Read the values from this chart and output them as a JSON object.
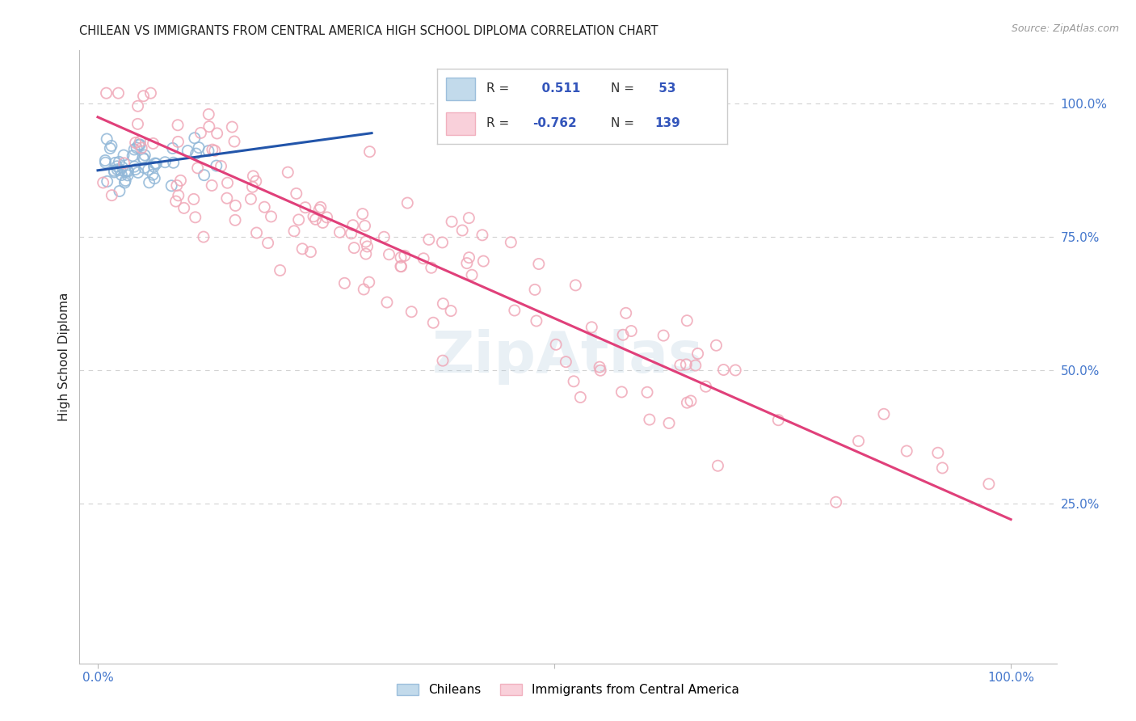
{
  "title": "CHILEAN VS IMMIGRANTS FROM CENTRAL AMERICA HIGH SCHOOL DIPLOMA CORRELATION CHART",
  "source": "Source: ZipAtlas.com",
  "ylabel": "High School Diploma",
  "right_yticks": [
    "100.0%",
    "75.0%",
    "50.0%",
    "25.0%"
  ],
  "right_ytick_vals": [
    1.0,
    0.75,
    0.5,
    0.25
  ],
  "blue_color": "#92b8d8",
  "blue_fill": "#b8d4e8",
  "pink_color": "#f0a8b8",
  "pink_fill": "#f8c8d4",
  "blue_line_color": "#2255aa",
  "pink_line_color": "#e0407a",
  "blue_n": 53,
  "pink_n": 139,
  "watermark": "ZipAtlas",
  "background_color": "#ffffff",
  "title_color": "#222222",
  "source_color": "#999999",
  "axis_label_color": "#4477cc",
  "grid_color": "#cccccc",
  "legend_text_color": "#3355bb",
  "legend_r1_val": "  0.511",
  "legend_r2_val": "-0.762",
  "legend_n1": " 53",
  "legend_n2": "139",
  "blue_trend_x": [
    0.0,
    0.3
  ],
  "blue_trend_y": [
    0.875,
    0.945
  ],
  "pink_trend_x": [
    0.0,
    1.0
  ],
  "pink_trend_y": [
    0.975,
    0.22
  ],
  "xlim": [
    -0.02,
    1.05
  ],
  "ylim": [
    -0.05,
    1.1
  ]
}
